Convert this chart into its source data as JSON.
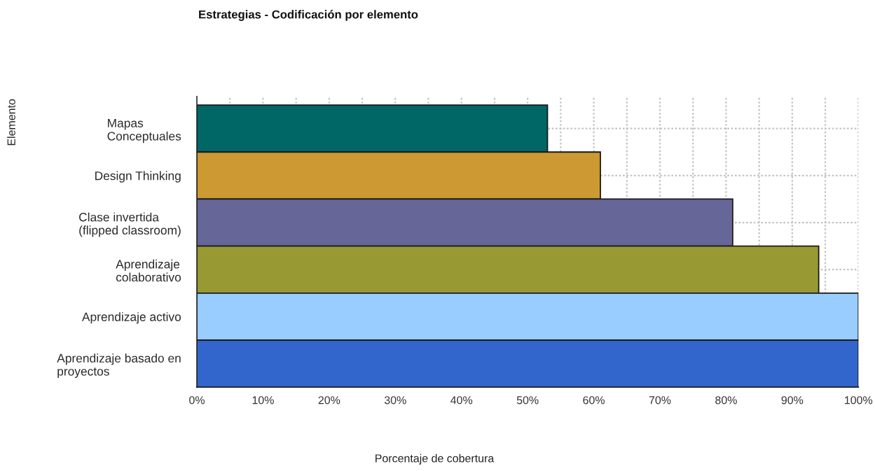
{
  "chart_data": {
    "type": "bar",
    "orientation": "horizontal",
    "title": "Estrategias - Codificación por elemento",
    "xlabel": "Porcentaje de cobertura",
    "ylabel": "Elemento",
    "categories": [
      "Mapas\nConceptuales",
      "Design Thinking",
      "Clase invertida\n(flipped classroom)",
      "Aprendizaje\ncolaborativo",
      "Aprendizaje activo",
      "Aprendizaje basado en\nproyectos"
    ],
    "values": [
      53,
      61,
      81,
      94,
      100,
      100
    ],
    "colors": [
      "#006666",
      "#cc9933",
      "#666699",
      "#999933",
      "#99ccff",
      "#3366cc"
    ],
    "xlim": [
      0,
      100
    ],
    "xticks": [
      {
        "value": 0,
        "label": "0%"
      },
      {
        "value": 5,
        "label": null
      },
      {
        "value": 10,
        "label": "10%"
      },
      {
        "value": 15,
        "label": null
      },
      {
        "value": 20,
        "label": "20%"
      },
      {
        "value": 25,
        "label": null
      },
      {
        "value": 30,
        "label": "30%"
      },
      {
        "value": 35,
        "label": null
      },
      {
        "value": 40,
        "label": "40%"
      },
      {
        "value": 45,
        "label": null
      },
      {
        "value": 50,
        "label": "50%"
      },
      {
        "value": 55,
        "label": null
      },
      {
        "value": 60,
        "label": "60%"
      },
      {
        "value": 65,
        "label": null
      },
      {
        "value": 70,
        "label": "70%"
      },
      {
        "value": 75,
        "label": null
      },
      {
        "value": 80,
        "label": "80%"
      },
      {
        "value": 85,
        "label": null
      },
      {
        "value": 90,
        "label": "90%"
      },
      {
        "value": 95,
        "label": null
      },
      {
        "value": 100,
        "label": "100%"
      }
    ],
    "grid": true
  }
}
